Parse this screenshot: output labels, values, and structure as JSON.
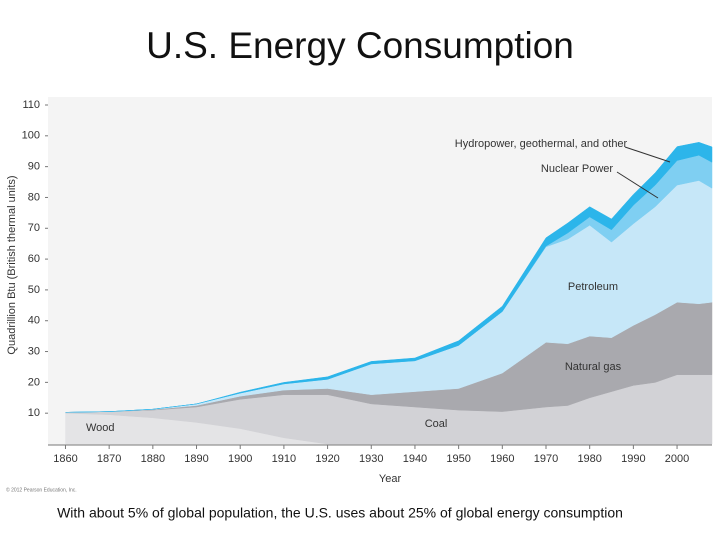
{
  "chart_data": {
    "type": "stacked-area",
    "title": "U.S. Energy Consumption",
    "y_label": "Quadrillion Btu (British thermal units)",
    "x_label": "Year",
    "note": "© 2012 Pearson Education, Inc.",
    "caption": "With about 5% of global population, the U.S. uses about 25% of global energy consumption",
    "x": [
      1860,
      1870,
      1880,
      1890,
      1900,
      1910,
      1920,
      1930,
      1940,
      1950,
      1960,
      1970,
      1975,
      1980,
      1985,
      1990,
      1995,
      2000,
      2005,
      2008
    ],
    "series": [
      {
        "name": "Wood",
        "color": "#e4e4e6",
        "values": [
          10,
          9.5,
          8.5,
          7,
          5,
          2,
          0,
          0,
          0,
          0,
          0,
          0,
          0,
          0,
          0,
          0,
          0,
          0,
          0,
          0
        ]
      },
      {
        "name": "Coal",
        "color": "#d2d2d6",
        "values": [
          0.3,
          1,
          2.5,
          5,
          9.5,
          14,
          16,
          13,
          12,
          11,
          10.5,
          12,
          12.5,
          15,
          17,
          19,
          20,
          22.5,
          22.5,
          22.5
        ]
      },
      {
        "name": "Natural gas",
        "color": "#a9a9ae",
        "values": [
          0,
          0,
          0.2,
          0.5,
          1,
          1.5,
          2,
          3,
          5,
          7,
          12.5,
          21,
          20,
          20,
          17.5,
          19.5,
          22,
          23.5,
          23,
          23.5
        ]
      },
      {
        "name": "Petroleum",
        "color": "#c6e7f8",
        "values": [
          0,
          0,
          0.1,
          0.5,
          1,
          2,
          3,
          10,
          10,
          14,
          20,
          31,
          34,
          36,
          31,
          33,
          35,
          38,
          40,
          37
        ]
      },
      {
        "name": "Nuclear Power",
        "color": "#7fcff2",
        "values": [
          0,
          0,
          0,
          0,
          0,
          0,
          0,
          0,
          0,
          0,
          0,
          0.2,
          2,
          2.7,
          4,
          6,
          7,
          8,
          8.2,
          8.4
        ]
      },
      {
        "name": "Hydropower, geothermal, and other",
        "color": "#2cb5ea",
        "values": [
          0,
          0,
          0,
          0,
          0.3,
          0.5,
          0.8,
          0.8,
          0.9,
          1.5,
          1.7,
          2.7,
          3.2,
          3.3,
          3.5,
          3.5,
          4,
          4.5,
          4.2,
          5
        ]
      }
    ],
    "xlim": [
      1856,
      2008
    ],
    "xticks": [
      1860,
      1870,
      1880,
      1890,
      1900,
      1910,
      1920,
      1930,
      1940,
      1950,
      1960,
      1970,
      1980,
      1990,
      2000
    ],
    "ylim": [
      0,
      110
    ],
    "yticks": [
      10,
      20,
      30,
      40,
      50,
      60,
      70,
      80,
      90,
      100,
      110
    ],
    "grid": false
  }
}
